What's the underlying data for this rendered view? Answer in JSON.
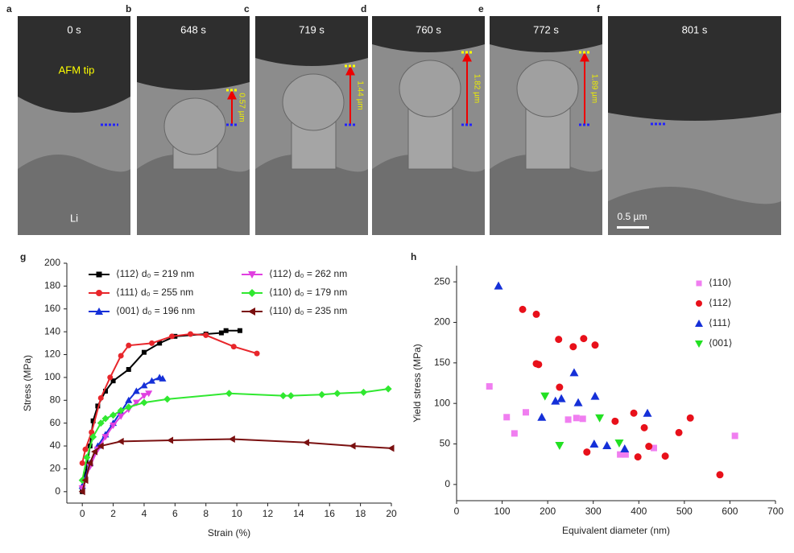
{
  "panels": [
    {
      "letter": "a",
      "time": "0 s"
    },
    {
      "letter": "b",
      "time": "648 s",
      "length": "0.57 µm"
    },
    {
      "letter": "c",
      "time": "719 s",
      "length": "1.44 µm"
    },
    {
      "letter": "d",
      "time": "760 s",
      "length": "1.82 µm"
    },
    {
      "letter": "e",
      "time": "772 s",
      "length": "1.89 µm"
    },
    {
      "letter": "f",
      "time": "801 s"
    }
  ],
  "annotations": {
    "afm_tip": "AFM tip",
    "li": "Li",
    "scale_bar": "0.5 µm"
  },
  "chart_data": [
    {
      "type": "line",
      "panel": "g",
      "xlabel": "Strain (%)",
      "ylabel": "Stress (MPa)",
      "xlim": [
        -1,
        20
      ],
      "ylim": [
        -10,
        200
      ],
      "xticks": [
        0,
        2,
        4,
        6,
        8,
        10,
        12,
        14,
        16,
        18,
        20
      ],
      "yticks": [
        0,
        20,
        40,
        60,
        80,
        100,
        120,
        140,
        160,
        180,
        200
      ],
      "series": [
        {
          "name": "⟨112⟩ d₀ = 219 nm",
          "color": "#000000",
          "marker": "square",
          "x": [
            0,
            0.2,
            0.5,
            0.7,
            1.0,
            1.5,
            2,
            3,
            4,
            5,
            6,
            8,
            9,
            9.3,
            10.2
          ],
          "values": [
            0,
            15,
            40,
            62,
            75,
            88,
            97,
            107,
            122,
            130,
            136,
            138,
            139,
            141,
            141
          ]
        },
        {
          "name": "⟨111⟩ d₀ = 255 nm",
          "color": "#e8262b",
          "marker": "circle",
          "x": [
            0,
            0.2,
            0.6,
            1.2,
            1.8,
            2.5,
            3,
            4.5,
            5.8,
            7,
            8,
            9.8,
            11.3
          ],
          "values": [
            25,
            37,
            52,
            82,
            100,
            119,
            128,
            130,
            136,
            138,
            137,
            127,
            121
          ]
        },
        {
          "name": "⟨001⟩ d₀ = 196 nm",
          "color": "#1530d8",
          "marker": "triangle-up",
          "x": [
            0,
            0.5,
            1,
            1.5,
            2,
            2.5,
            3,
            3.5,
            4,
            4.5,
            5,
            5.2
          ],
          "values": [
            5,
            25,
            40,
            50,
            60,
            70,
            80,
            88,
            93,
            97,
            100,
            99
          ]
        },
        {
          "name": "⟨112⟩ d₀ = 262 nm",
          "color": "#e040e0",
          "marker": "triangle-down",
          "x": [
            0,
            0.5,
            1,
            1.5,
            2,
            2.5,
            3,
            3.5,
            4,
            4.3
          ],
          "values": [
            3,
            22,
            37,
            48,
            58,
            66,
            72,
            78,
            84,
            86
          ]
        },
        {
          "name": "⟨110⟩ d₀ = 179 nm",
          "color": "#30e830",
          "marker": "diamond",
          "x": [
            0,
            0.3,
            0.7,
            1.2,
            1.5,
            2,
            2.5,
            3,
            4,
            5.5,
            9.5,
            13,
            13.5,
            15.5,
            16.5,
            18.2,
            19.8
          ],
          "values": [
            10,
            30,
            48,
            60,
            64,
            67,
            71,
            74,
            78,
            81,
            86,
            84,
            84,
            85,
            86,
            87,
            90
          ]
        },
        {
          "name": "⟨110⟩ d₀ = 235 nm",
          "color": "#7a1010",
          "marker": "triangle-left",
          "x": [
            0,
            0.2,
            0.5,
            0.8,
            1.2,
            2.5,
            5.7,
            9.7,
            14.5,
            17.5,
            20
          ],
          "values": [
            0,
            10,
            25,
            35,
            40,
            44,
            45,
            46,
            43,
            40,
            38
          ]
        }
      ]
    },
    {
      "type": "scatter",
      "panel": "h",
      "xlabel": "Equivalent diameter (nm)",
      "ylabel": "Yield stress (MPa)",
      "xlim": [
        0,
        700
      ],
      "ylim": [
        -20,
        270
      ],
      "xticks": [
        0,
        100,
        200,
        300,
        400,
        500,
        600,
        700
      ],
      "yticks": [
        0,
        50,
        100,
        150,
        200,
        250
      ],
      "series": [
        {
          "name": "⟨110⟩",
          "color": "#f07ef0",
          "marker": "square",
          "x": [
            72,
            110,
            127,
            152,
            245,
            263,
            277,
            359,
            371,
            433,
            611
          ],
          "values": [
            121,
            83,
            63,
            89,
            80,
            82,
            81,
            37,
            37,
            45,
            60
          ]
        },
        {
          "name": "⟨112⟩",
          "color": "#e8101a",
          "marker": "circle",
          "x": [
            145,
            175,
            175,
            180,
            224,
            226,
            256,
            279,
            304,
            286,
            348,
            389,
            398,
            412,
            422,
            458,
            488,
            513,
            578
          ],
          "values": [
            216,
            210,
            149,
            148,
            179,
            120,
            170,
            180,
            172,
            40,
            78,
            88,
            34,
            70,
            47,
            35,
            64,
            82,
            12
          ]
        },
        {
          "name": "⟨111⟩",
          "color": "#1530d8",
          "marker": "triangle-up",
          "x": [
            92,
            187,
            217,
            230,
            258,
            267,
            304,
            302,
            330,
            369,
            419
          ],
          "values": [
            245,
            83,
            103,
            106,
            138,
            101,
            109,
            50,
            48,
            44,
            88
          ]
        },
        {
          "name": "⟨001⟩",
          "color": "#22e022",
          "marker": "triangle-down",
          "x": [
            194,
            226,
            314,
            357
          ],
          "values": [
            109,
            48,
            82,
            51
          ]
        }
      ]
    }
  ]
}
